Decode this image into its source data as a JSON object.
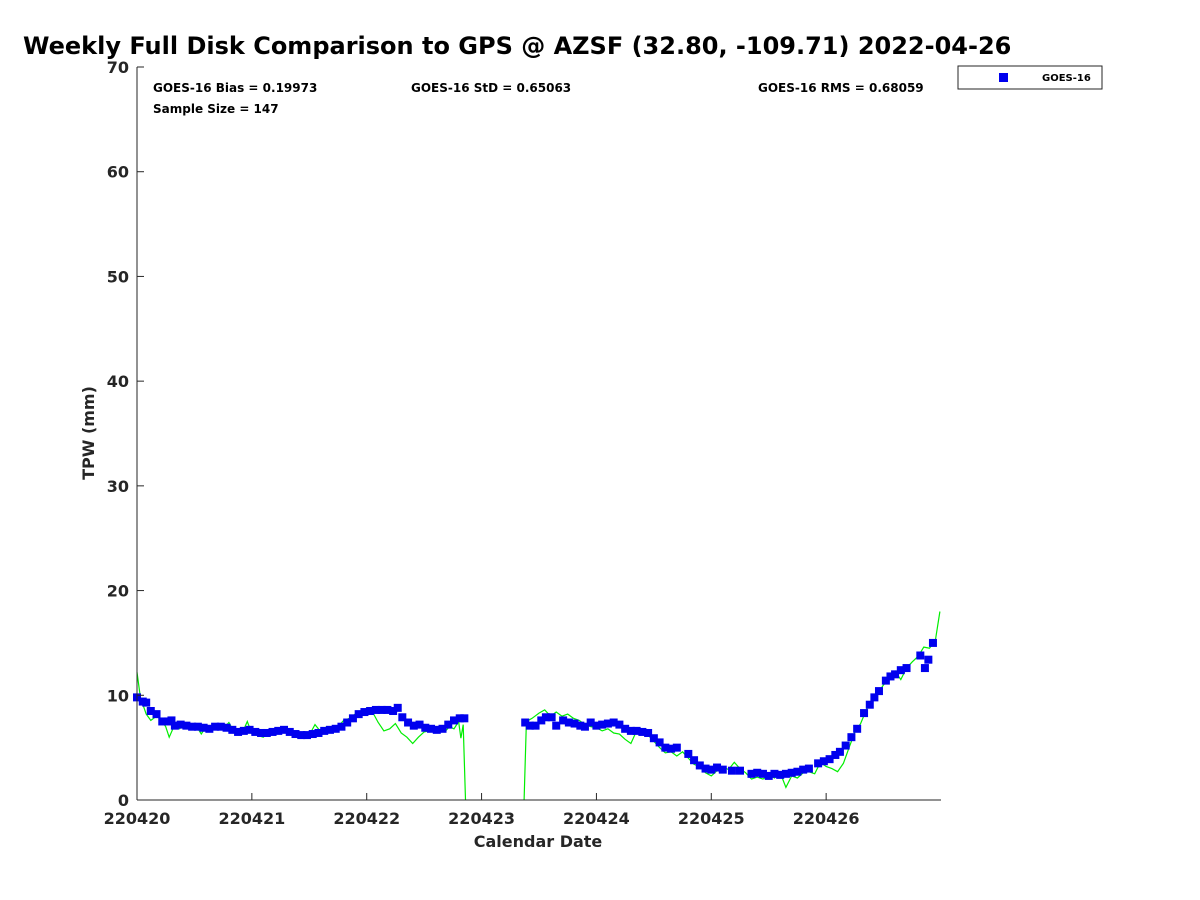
{
  "chart_data": {
    "type": "scatter",
    "title": "Weekly Full Disk Comparison to GPS @ AZSF (32.80, -109.71) 2022-04-26",
    "xlabel": "Calendar Date",
    "ylabel": "TPW (mm)",
    "ylim": [
      0,
      70
    ],
    "xlim_days": [
      0,
      7
    ],
    "yticks": [
      "0",
      "10",
      "20",
      "30",
      "40",
      "50",
      "60",
      "70"
    ],
    "xticks": [
      "220420",
      "220421",
      "220422",
      "220423",
      "220424",
      "220425",
      "220426"
    ],
    "stats": {
      "bias": "GOES-16 Bias = 0.19973",
      "std": "GOES-16 StD = 0.65063",
      "rms": "GOES-16 RMS = 0.68059",
      "sample": "Sample Size = 147"
    },
    "legend": {
      "label": "GOES-16",
      "position": "top-right-outside"
    },
    "colors": {
      "goes": "#0000ee",
      "gps": "#00ee00"
    },
    "goes_series": [
      [
        0,
        9.8
      ],
      [
        0.05,
        9.4
      ],
      [
        0.08,
        9.3
      ],
      [
        0.12,
        8.5
      ],
      [
        0.17,
        8.2
      ],
      [
        0.22,
        7.5
      ],
      [
        0.27,
        7.5
      ],
      [
        0.3,
        7.6
      ],
      [
        0.33,
        7.1
      ],
      [
        0.38,
        7.2
      ],
      [
        0.43,
        7.1
      ],
      [
        0.48,
        7.0
      ],
      [
        0.53,
        7.0
      ],
      [
        0.58,
        6.9
      ],
      [
        0.63,
        6.8
      ],
      [
        0.68,
        7.0
      ],
      [
        0.73,
        7.0
      ],
      [
        0.78,
        6.9
      ],
      [
        0.83,
        6.7
      ],
      [
        0.88,
        6.5
      ],
      [
        0.93,
        6.6
      ],
      [
        0.98,
        6.7
      ],
      [
        1.03,
        6.5
      ],
      [
        1.08,
        6.4
      ],
      [
        1.13,
        6.4
      ],
      [
        1.18,
        6.5
      ],
      [
        1.23,
        6.6
      ],
      [
        1.28,
        6.7
      ],
      [
        1.33,
        6.5
      ],
      [
        1.38,
        6.3
      ],
      [
        1.43,
        6.2
      ],
      [
        1.48,
        6.2
      ],
      [
        1.53,
        6.3
      ],
      [
        1.58,
        6.4
      ],
      [
        1.63,
        6.6
      ],
      [
        1.68,
        6.7
      ],
      [
        1.73,
        6.8
      ],
      [
        1.78,
        7.0
      ],
      [
        1.83,
        7.4
      ],
      [
        1.88,
        7.8
      ],
      [
        1.93,
        8.2
      ],
      [
        1.98,
        8.4
      ],
      [
        2.03,
        8.5
      ],
      [
        2.08,
        8.6
      ],
      [
        2.13,
        8.6
      ],
      [
        2.18,
        8.6
      ],
      [
        2.23,
        8.5
      ],
      [
        2.27,
        8.8
      ],
      [
        2.31,
        7.9
      ],
      [
        2.36,
        7.4
      ],
      [
        2.41,
        7.1
      ],
      [
        2.46,
        7.2
      ],
      [
        2.51,
        6.9
      ],
      [
        2.56,
        6.8
      ],
      [
        2.61,
        6.7
      ],
      [
        2.66,
        6.8
      ],
      [
        2.71,
        7.2
      ],
      [
        2.76,
        7.6
      ],
      [
        2.81,
        7.8
      ],
      [
        2.85,
        7.8
      ],
      [
        3.38,
        7.4
      ],
      [
        3.42,
        7.1
      ],
      [
        3.47,
        7.1
      ],
      [
        3.52,
        7.6
      ],
      [
        3.56,
        7.9
      ],
      [
        3.61,
        7.9
      ],
      [
        3.65,
        7.1
      ],
      [
        3.71,
        7.6
      ],
      [
        3.76,
        7.4
      ],
      [
        3.81,
        7.3
      ],
      [
        3.86,
        7.1
      ],
      [
        3.9,
        7.0
      ],
      [
        3.95,
        7.4
      ],
      [
        4.0,
        7.1
      ],
      [
        4.05,
        7.2
      ],
      [
        4.1,
        7.3
      ],
      [
        4.15,
        7.4
      ],
      [
        4.2,
        7.2
      ],
      [
        4.25,
        6.8
      ],
      [
        4.3,
        6.6
      ],
      [
        4.35,
        6.6
      ],
      [
        4.4,
        6.5
      ],
      [
        4.45,
        6.4
      ],
      [
        4.5,
        5.9
      ],
      [
        4.55,
        5.5
      ],
      [
        4.6,
        5.0
      ],
      [
        4.65,
        4.9
      ],
      [
        4.7,
        5.0
      ],
      [
        4.8,
        4.4
      ],
      [
        4.85,
        3.8
      ],
      [
        4.9,
        3.3
      ],
      [
        4.95,
        3.0
      ],
      [
        5.0,
        2.9
      ],
      [
        5.05,
        3.1
      ],
      [
        5.1,
        2.9
      ],
      [
        5.18,
        2.8
      ],
      [
        5.25,
        2.8
      ],
      [
        5.35,
        2.5
      ],
      [
        5.4,
        2.6
      ],
      [
        5.45,
        2.5
      ],
      [
        5.5,
        2.3
      ],
      [
        5.55,
        2.5
      ],
      [
        5.6,
        2.4
      ],
      [
        5.65,
        2.5
      ],
      [
        5.7,
        2.6
      ],
      [
        5.75,
        2.7
      ],
      [
        5.8,
        2.9
      ],
      [
        5.85,
        3.0
      ],
      [
        5.93,
        3.5
      ],
      [
        5.98,
        3.7
      ],
      [
        6.03,
        3.9
      ],
      [
        6.08,
        4.3
      ],
      [
        6.12,
        4.6
      ],
      [
        6.17,
        5.2
      ],
      [
        6.22,
        6.0
      ],
      [
        6.27,
        6.8
      ],
      [
        6.33,
        8.3
      ],
      [
        6.38,
        9.1
      ],
      [
        6.42,
        9.8
      ],
      [
        6.46,
        10.4
      ],
      [
        6.52,
        11.4
      ],
      [
        6.56,
        11.8
      ],
      [
        6.6,
        12.0
      ],
      [
        6.65,
        12.4
      ],
      [
        6.7,
        12.6
      ],
      [
        6.82,
        13.8
      ],
      [
        6.86,
        12.6
      ],
      [
        6.89,
        13.4
      ],
      [
        6.93,
        15.0
      ]
    ],
    "gps_series": [
      [
        0,
        12.2
      ],
      [
        0.03,
        9.8
      ],
      [
        0.08,
        8.2
      ],
      [
        0.12,
        7.6
      ],
      [
        0.17,
        8.0
      ],
      [
        0.2,
        7.8
      ],
      [
        0.25,
        7.0
      ],
      [
        0.28,
        6.0
      ],
      [
        0.32,
        7.0
      ],
      [
        0.37,
        6.8
      ],
      [
        0.42,
        7.3
      ],
      [
        0.47,
        6.7
      ],
      [
        0.52,
        7.0
      ],
      [
        0.56,
        6.3
      ],
      [
        0.6,
        7.0
      ],
      [
        0.65,
        6.6
      ],
      [
        0.7,
        7.1
      ],
      [
        0.75,
        6.8
      ],
      [
        0.8,
        7.4
      ],
      [
        0.84,
        6.6
      ],
      [
        0.88,
        6.8
      ],
      [
        0.92,
        6.5
      ],
      [
        0.96,
        7.5
      ],
      [
        1.0,
        6.3
      ],
      [
        1.04,
        6.2
      ],
      [
        1.1,
        6.0
      ],
      [
        1.15,
        6.5
      ],
      [
        1.2,
        6.6
      ],
      [
        1.25,
        6.9
      ],
      [
        1.3,
        6.4
      ],
      [
        1.35,
        6.3
      ],
      [
        1.4,
        6.1
      ],
      [
        1.45,
        6.5
      ],
      [
        1.5,
        6.2
      ],
      [
        1.55,
        7.2
      ],
      [
        1.6,
        6.5
      ],
      [
        1.65,
        7.0
      ],
      [
        1.7,
        6.7
      ],
      [
        1.75,
        7.0
      ],
      [
        1.8,
        7.6
      ],
      [
        1.85,
        7.8
      ],
      [
        1.9,
        8.2
      ],
      [
        1.96,
        8.4
      ],
      [
        2.0,
        8.8
      ],
      [
        2.05,
        8.4
      ],
      [
        2.1,
        7.4
      ],
      [
        2.15,
        6.6
      ],
      [
        2.2,
        6.8
      ],
      [
        2.25,
        7.3
      ],
      [
        2.3,
        6.4
      ],
      [
        2.35,
        6.0
      ],
      [
        2.4,
        5.4
      ],
      [
        2.45,
        6.0
      ],
      [
        2.5,
        6.5
      ],
      [
        2.55,
        6.6
      ],
      [
        2.6,
        6.8
      ],
      [
        2.64,
        7.0
      ],
      [
        2.68,
        6.5
      ],
      [
        2.72,
        7.0
      ],
      [
        2.76,
        6.8
      ],
      [
        2.8,
        7.5
      ],
      [
        2.82,
        5.9
      ],
      [
        2.84,
        7.2
      ],
      [
        2.86,
        0
      ],
      null,
      [
        3.37,
        0
      ],
      [
        3.39,
        7.5
      ],
      [
        3.44,
        7.8
      ],
      [
        3.5,
        8.3
      ],
      [
        3.55,
        8.6
      ],
      [
        3.6,
        8.0
      ],
      [
        3.65,
        8.4
      ],
      [
        3.7,
        8.0
      ],
      [
        3.75,
        8.2
      ],
      [
        3.8,
        7.8
      ],
      [
        3.85,
        7.6
      ],
      [
        3.9,
        7.2
      ],
      [
        3.95,
        7.0
      ],
      [
        4.0,
        6.9
      ],
      [
        4.05,
        6.6
      ],
      [
        4.1,
        6.8
      ],
      [
        4.15,
        6.4
      ],
      [
        4.2,
        6.3
      ],
      [
        4.25,
        5.8
      ],
      [
        4.3,
        5.4
      ],
      [
        4.35,
        6.6
      ],
      [
        4.4,
        6.5
      ],
      [
        4.45,
        6.2
      ],
      [
        4.5,
        5.6
      ],
      [
        4.55,
        5.0
      ],
      [
        4.6,
        4.5
      ],
      [
        4.65,
        4.6
      ],
      [
        4.7,
        4.2
      ],
      [
        4.75,
        4.6
      ],
      [
        4.8,
        4.0
      ],
      [
        4.85,
        3.4
      ],
      [
        4.9,
        3.2
      ],
      [
        4.95,
        2.6
      ],
      [
        5.0,
        2.3
      ],
      [
        5.05,
        2.8
      ],
      [
        5.1,
        3.2
      ],
      [
        5.15,
        2.9
      ],
      [
        5.2,
        3.6
      ],
      [
        5.25,
        3.0
      ],
      [
        5.3,
        2.6
      ],
      [
        5.35,
        2.0
      ],
      [
        5.4,
        2.2
      ],
      [
        5.45,
        2.0
      ],
      [
        5.5,
        2.4
      ],
      [
        5.55,
        2.1
      ],
      [
        5.6,
        2.6
      ],
      [
        5.65,
        1.2
      ],
      [
        5.7,
        2.3
      ],
      [
        5.75,
        2.1
      ],
      [
        5.8,
        2.6
      ],
      [
        5.85,
        2.7
      ],
      [
        5.9,
        2.5
      ],
      [
        5.95,
        3.6
      ],
      [
        6.0,
        3.2
      ],
      [
        6.05,
        3.0
      ],
      [
        6.1,
        2.7
      ],
      [
        6.15,
        3.5
      ],
      [
        6.2,
        5.0
      ],
      [
        6.25,
        6.5
      ],
      [
        6.3,
        7.3
      ],
      [
        6.35,
        8.6
      ],
      [
        6.4,
        9.6
      ],
      [
        6.45,
        10.2
      ],
      [
        6.5,
        11.0
      ],
      [
        6.55,
        11.6
      ],
      [
        6.6,
        12.3
      ],
      [
        6.65,
        11.5
      ],
      [
        6.7,
        12.6
      ],
      [
        6.75,
        13.2
      ],
      [
        6.8,
        13.7
      ],
      [
        6.85,
        14.6
      ],
      [
        6.9,
        14.5
      ],
      [
        6.95,
        15.2
      ],
      [
        6.99,
        18.0
      ]
    ]
  }
}
